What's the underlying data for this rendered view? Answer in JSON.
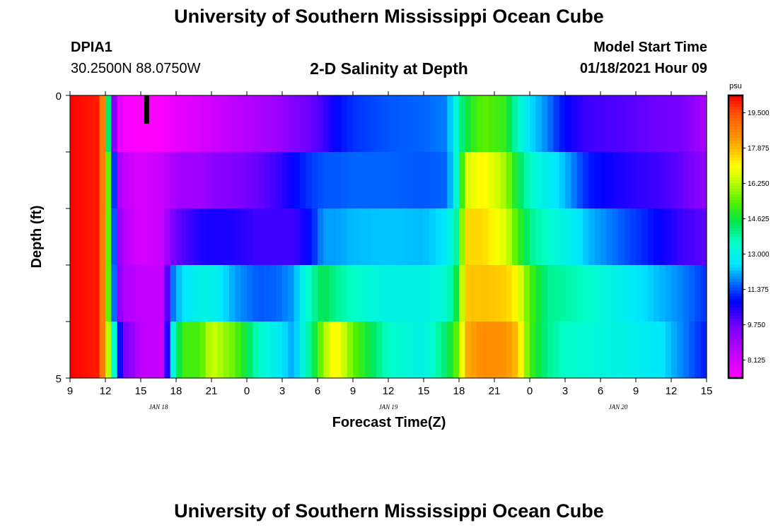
{
  "header": {
    "title": "University of Southern Mississippi Ocean Cube",
    "station_id": "DPIA1",
    "coordinates": "30.2500N 88.0750W",
    "subtitle": "2-D Salinity at Depth",
    "model_label": "Model Start Time",
    "model_start": "01/18/2021 Hour 09"
  },
  "footer": {
    "title": "University of Southern Mississippi Ocean Cube"
  },
  "chart_data": {
    "type": "heatmap",
    "title": "2-D Salinity at Depth",
    "xlabel": "Forecast Time(Z)",
    "ylabel": "Depth (ft)",
    "x_start": "01/18/2021 Hour 09",
    "x_step_hours": 1,
    "x_tick_labels": [
      "9",
      "12",
      "15",
      "18",
      "21",
      "0",
      "3",
      "6",
      "9",
      "12",
      "15",
      "18",
      "21",
      "0",
      "3",
      "6",
      "9",
      "12",
      "15"
    ],
    "x_tick_hours": [
      9,
      12,
      15,
      18,
      21,
      24,
      27,
      30,
      33,
      36,
      39,
      42,
      45,
      48,
      51,
      54,
      57,
      60,
      63
    ],
    "date_labels": [
      {
        "text": "JAN 18",
        "hour": 16.5
      },
      {
        "text": "JAN 19",
        "hour": 36
      },
      {
        "text": "JAN 20",
        "hour": 55.5
      }
    ],
    "y_tick_labels": [
      "0",
      "5"
    ],
    "ylim": [
      0,
      5
    ],
    "y_reversed": true,
    "depth_layers": [
      0.5,
      1.5,
      2.5,
      3.5,
      4.5
    ],
    "colorbar": {
      "unit": "psu",
      "ticks": [
        19.5,
        17.875,
        16.25,
        14.625,
        13.0,
        11.375,
        9.75,
        8.125
      ],
      "tick_labels": [
        "19.500",
        "17.875",
        "16.250",
        "14.625",
        "13.000",
        "11.375",
        "9.750",
        "8.125"
      ],
      "range": [
        7.3,
        20.3
      ]
    },
    "marker_hour": 15.5,
    "keyframes": [
      {
        "h": 9,
        "s": [
          20.3,
          20.3,
          20.3,
          20.3,
          20.3
        ]
      },
      {
        "h": 11.5,
        "s": [
          20.0,
          20.0,
          20.0,
          20.0,
          20.0
        ]
      },
      {
        "h": 12,
        "s": [
          17.5,
          17.5,
          17.5,
          17.5,
          17.5
        ]
      },
      {
        "h": 12.5,
        "s": [
          11.0,
          13.5,
          13.5,
          13.5,
          15.0
        ]
      },
      {
        "h": 13,
        "s": [
          7.8,
          9.0,
          9.5,
          9.8,
          12.0
        ]
      },
      {
        "h": 13.5,
        "s": [
          7.5,
          8.5,
          8.7,
          8.8,
          9.8
        ]
      },
      {
        "h": 15,
        "s": [
          7.3,
          8.0,
          8.0,
          8.4,
          8.5
        ]
      },
      {
        "h": 17,
        "s": [
          7.4,
          8.4,
          8.4,
          8.4,
          8.3
        ]
      },
      {
        "h": 17.5,
        "s": [
          7.6,
          8.7,
          9.5,
          11.5,
          12.5
        ]
      },
      {
        "h": 18.5,
        "s": [
          7.8,
          9.0,
          10.0,
          12.5,
          15.2
        ]
      },
      {
        "h": 20,
        "s": [
          8.0,
          9.0,
          10.5,
          13.0,
          15.2
        ]
      },
      {
        "h": 21,
        "s": [
          8.2,
          9.3,
          10.6,
          13.0,
          16.5
        ]
      },
      {
        "h": 23,
        "s": [
          8.5,
          9.5,
          10.5,
          12.0,
          15.5
        ]
      },
      {
        "h": 25,
        "s": [
          8.8,
          9.8,
          10.2,
          11.5,
          13.5
        ]
      },
      {
        "h": 26.5,
        "s": [
          9.0,
          10.2,
          10.2,
          11.6,
          12.8
        ]
      },
      {
        "h": 28,
        "s": [
          9.5,
          10.8,
          10.2,
          12.0,
          12.0
        ]
      },
      {
        "h": 29.5,
        "s": [
          9.8,
          11.3,
          11.0,
          13.8,
          14.2
        ]
      },
      {
        "h": 30.5,
        "s": [
          10.2,
          11.5,
          12.0,
          14.5,
          16.0
        ]
      },
      {
        "h": 31.5,
        "s": [
          10.8,
          11.5,
          12.0,
          14.0,
          17.3
        ]
      },
      {
        "h": 33,
        "s": [
          11.2,
          11.6,
          12.2,
          13.5,
          15.5
        ]
      },
      {
        "h": 36,
        "s": [
          11.5,
          11.6,
          12.3,
          13.0,
          13.5
        ]
      },
      {
        "h": 39,
        "s": [
          11.6,
          11.5,
          12.2,
          13.0,
          13.0
        ]
      },
      {
        "h": 41,
        "s": [
          11.8,
          11.6,
          12.6,
          13.3,
          14.3
        ]
      },
      {
        "h": 42,
        "s": [
          13.8,
          13.8,
          14.3,
          15.0,
          15.8
        ]
      },
      {
        "h": 42.5,
        "s": [
          14.5,
          16.5,
          17.5,
          17.7,
          18.0
        ]
      },
      {
        "h": 44,
        "s": [
          15.5,
          17.2,
          17.5,
          17.8,
          18.5
        ]
      },
      {
        "h": 46,
        "s": [
          15.0,
          16.0,
          16.6,
          17.6,
          18.4
        ]
      },
      {
        "h": 47,
        "s": [
          13.5,
          14.5,
          15.2,
          17.0,
          17.8
        ]
      },
      {
        "h": 48,
        "s": [
          12.5,
          13.5,
          14.0,
          15.3,
          15.2
        ]
      },
      {
        "h": 49.5,
        "s": [
          11.8,
          12.8,
          13.5,
          14.0,
          14.0
        ]
      },
      {
        "h": 51,
        "s": [
          10.8,
          12.2,
          13.0,
          13.8,
          13.5
        ]
      },
      {
        "h": 53,
        "s": [
          10.2,
          11.0,
          12.2,
          13.5,
          13.3
        ]
      },
      {
        "h": 56,
        "s": [
          10.0,
          10.5,
          11.5,
          12.8,
          13.0
        ]
      },
      {
        "h": 59,
        "s": [
          9.7,
          10.2,
          10.8,
          12.2,
          12.6
        ]
      },
      {
        "h": 61,
        "s": [
          9.6,
          9.8,
          10.2,
          11.8,
          11.8
        ]
      },
      {
        "h": 63,
        "s": [
          8.8,
          9.2,
          9.9,
          11.2,
          11.0
        ]
      }
    ]
  }
}
